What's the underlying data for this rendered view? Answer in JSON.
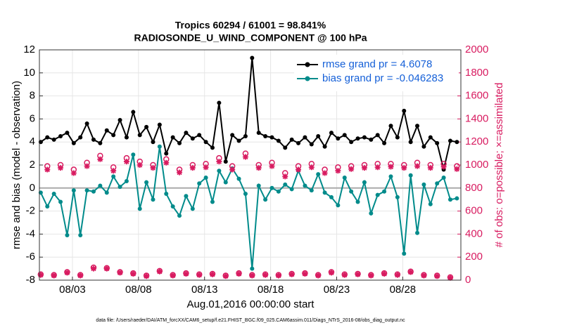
{
  "chart_data": {
    "type": "line",
    "title": "Tropics 60294 / 61001 = 98.841%",
    "subtitle": "RADIOSONDE_U_WIND_COMPONENT @ 100 hPa",
    "xlabel": "Aug.01,2016 00:00:00 start",
    "ylabel": "rmse and bias (model - observation)",
    "y2label": "# of obs: o=possible; ×=assimilated",
    "footnote": "data file: /Users/raeder/DAI/ATM_forcXX/CAM6_setup/f.e21.FHIST_BGC.f09_025.CAM6assim.011/Diags_NTrS_2016-08/obs_diag_output.nc",
    "x": [
      -0.4,
      0.1,
      0.6,
      1.1,
      1.6,
      2.1,
      2.6,
      3.1,
      3.6,
      4.1,
      4.6,
      5.1,
      5.6,
      6.1,
      6.6,
      7.1,
      7.6,
      8.1,
      8.6,
      9.1,
      9.6,
      10.1,
      10.6,
      11.1,
      11.6,
      12.1,
      12.6,
      13.1,
      13.6,
      14.1,
      14.6,
      15.1,
      15.6,
      16.1,
      16.6,
      17.1,
      17.6,
      18.1,
      18.6,
      19.1,
      19.6,
      20.1,
      20.6,
      21.1,
      21.6,
      22.1,
      22.6,
      23.1,
      23.6,
      24.1,
      24.6,
      25.1,
      25.6,
      26.1,
      26.6,
      27.1,
      27.6,
      28.1,
      28.6,
      29.1,
      29.6,
      30.1,
      30.6,
      31.1
    ],
    "xlim": [
      -0.5,
      31.4
    ],
    "xticks": [
      {
        "value": 2,
        "label": "08/03"
      },
      {
        "value": 7,
        "label": "08/08"
      },
      {
        "value": 12,
        "label": "08/13"
      },
      {
        "value": 17,
        "label": "08/18"
      },
      {
        "value": 22,
        "label": "08/23"
      },
      {
        "value": 27,
        "label": "08/28"
      }
    ],
    "ylim": [
      -8,
      12
    ],
    "yticks": [
      -8,
      -6,
      -4,
      -2,
      0,
      2,
      4,
      6,
      8,
      10,
      12
    ],
    "y2lim": [
      0,
      2000
    ],
    "y2ticks": [
      0,
      200,
      400,
      600,
      800,
      1000,
      1200,
      1400,
      1600,
      1800,
      2000
    ],
    "grid": true,
    "legend": "upper right",
    "series": [
      {
        "name": "rmse grand pr = 4.6078",
        "color": "#000000",
        "marker": "dot",
        "values": [
          4.0,
          4.4,
          4.2,
          4.5,
          4.8,
          3.9,
          4.4,
          5.6,
          4.2,
          3.9,
          5.0,
          4.6,
          5.9,
          4.4,
          6.6,
          4.6,
          5.3,
          4.0,
          5.5,
          3.0,
          4.4,
          3.9,
          4.8,
          4.3,
          4.6,
          4.0,
          3.5,
          7.4,
          2.3,
          4.6,
          4.1,
          4.5,
          11.3,
          4.8,
          4.5,
          4.4,
          4.1,
          3.5,
          4.2,
          3.9,
          4.4,
          3.8,
          4.5,
          3.6,
          4.8,
          4.3,
          4.6,
          4.0,
          4.3,
          4.4,
          4.2,
          4.6,
          3.9,
          5.4,
          4.4,
          6.7,
          4.0,
          5.4,
          3.6,
          4.4,
          3.9,
          1.6,
          4.1,
          4.0
        ]
      },
      {
        "name": "bias grand pr = -0.046283",
        "color": "#008b8b",
        "marker": "dot",
        "values": [
          -0.4,
          -1.6,
          -0.5,
          -1.2,
          -4.1,
          -0.2,
          -4.1,
          -0.2,
          -0.3,
          0.2,
          -0.4,
          1.0,
          0.1,
          0.6,
          2.9,
          -1.8,
          0.5,
          -1.0,
          3.6,
          -0.5,
          -1.6,
          -2.4,
          -0.7,
          -1.8,
          0.4,
          0.9,
          -1.2,
          1.5,
          0.5,
          1.7,
          0.8,
          -0.5,
          -7.0,
          0.2,
          -1.0,
          0.0,
          -0.3,
          0.3,
          -0.1,
          1.5,
          0.2,
          -0.2,
          1.2,
          -0.4,
          -0.8,
          -1.5,
          0.9,
          -0.3,
          -1.2,
          0.5,
          -2.2,
          -0.6,
          -0.3,
          1.0,
          -0.8,
          -5.7,
          1.1,
          -3.9,
          0.3,
          -1.4,
          0.4,
          0.9,
          -1.0,
          -0.9
        ]
      },
      {
        "color": "#d81b60",
        "marker": "o",
        "axis": "y2",
        "values": [
          50,
          990,
          45,
          1000,
          70,
          960,
          45,
          1020,
          110,
          1080,
          105,
          980,
          70,
          1060,
          60,
          1030,
          40,
          1000,
          80,
          1050,
          45,
          960,
          60,
          1000,
          50,
          1010,
          55,
          1060,
          40,
          990,
          60,
          1100,
          45,
          1000,
          50,
          1020,
          45,
          930,
          55,
          990,
          60,
          1010,
          45,
          960,
          70,
          980,
          50,
          990,
          55,
          1000,
          45,
          1010,
          60,
          1010,
          50,
          1000,
          75,
          1020,
          45,
          1000,
          40,
          1010,
          25,
          990
        ]
      },
      {
        "color": "#d81b60",
        "marker": "*",
        "axis": "y2",
        "values": [
          45,
          960,
          40,
          975,
          65,
          930,
          40,
          990,
          100,
          1050,
          100,
          950,
          65,
          1030,
          55,
          1000,
          35,
          975,
          75,
          1020,
          40,
          935,
          55,
          975,
          45,
          980,
          50,
          1030,
          35,
          960,
          55,
          1070,
          40,
          975,
          45,
          990,
          40,
          900,
          50,
          960,
          55,
          980,
          40,
          930,
          65,
          950,
          45,
          965,
          50,
          975,
          40,
          980,
          55,
          985,
          45,
          975,
          70,
          990,
          40,
          975,
          35,
          985,
          20,
          965
        ]
      }
    ]
  }
}
